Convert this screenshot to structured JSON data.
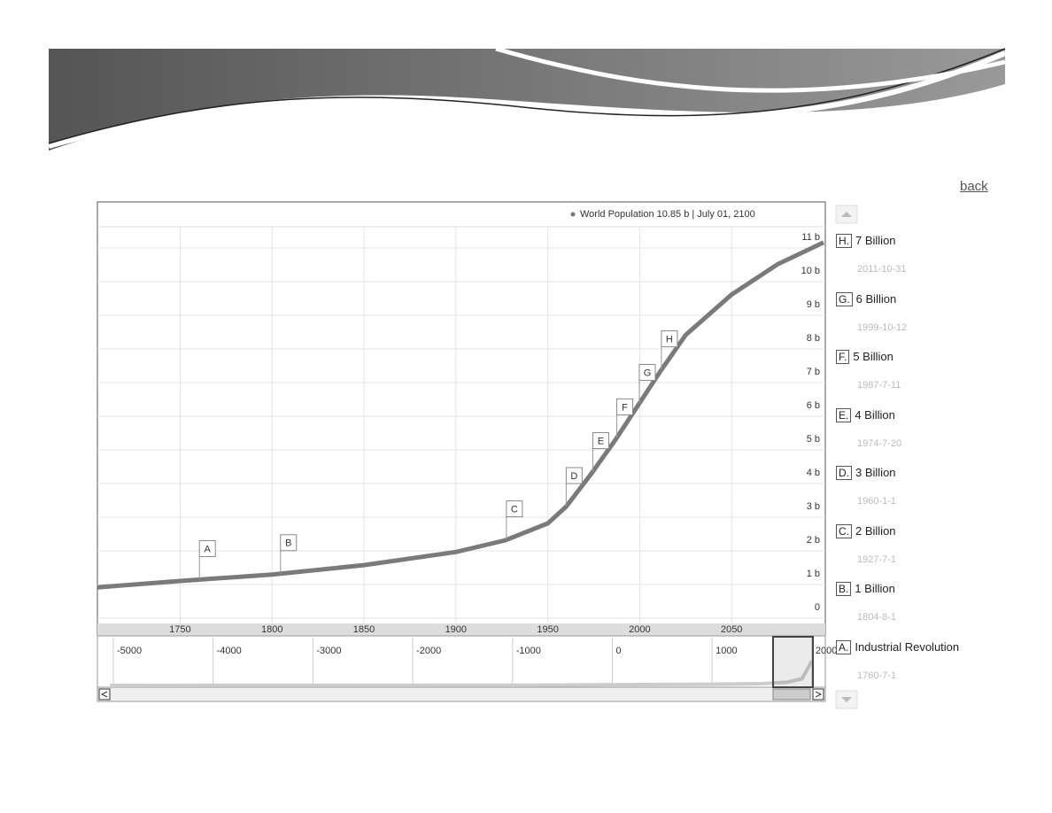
{
  "back_link": "back",
  "chart_data": {
    "type": "line",
    "legend_text": "World Population 10.85 b | July 01, 2100",
    "series": [
      {
        "name": "World Population",
        "color": "#7a7a7a",
        "x": [
          1705,
          1750,
          1800,
          1850,
          1900,
          1927,
          1950,
          1960,
          1974,
          1987,
          1999,
          2011,
          2025,
          2050,
          2075,
          2100
        ],
        "values": [
          0.6,
          0.79,
          0.98,
          1.26,
          1.65,
          2.0,
          2.5,
          3.0,
          4.0,
          5.0,
          6.0,
          7.0,
          8.1,
          9.3,
          10.2,
          10.85
        ]
      }
    ],
    "xlim": [
      1705,
      2100
    ],
    "xticks": [
      1750,
      1800,
      1850,
      1900,
      1950,
      2000,
      2050
    ],
    "ylim": [
      0,
      11
    ],
    "yticks": [
      0,
      {
        "value": 1,
        "label": "1 b"
      },
      {
        "value": 2,
        "label": "2 b"
      },
      {
        "value": 3,
        "label": "3 b"
      },
      {
        "value": 4,
        "label": "4 b"
      },
      {
        "value": 5,
        "label": "5 b"
      },
      {
        "value": 6,
        "label": "6 b"
      },
      {
        "value": 7,
        "label": "7 b"
      },
      {
        "value": 8,
        "label": "8 b"
      },
      {
        "value": 9,
        "label": "9 b"
      },
      {
        "value": 10,
        "label": "10 b"
      },
      {
        "value": 11,
        "label": "11 b"
      }
    ],
    "grid": true,
    "annotations": [
      {
        "flag": "H",
        "key": "H.",
        "title": "7 Billion",
        "date": "2011-10-31",
        "x": 2011.8
      },
      {
        "flag": "G",
        "key": "G.",
        "title": "6 Billion",
        "date": "1999-10-12",
        "x": 1999.8
      },
      {
        "flag": "F",
        "key": "F.",
        "title": "5 Billion",
        "date": "1987-7-11",
        "x": 1987.5
      },
      {
        "flag": "E",
        "key": "E.",
        "title": "4 Billion",
        "date": "1974-7-20",
        "x": 1974.5
      },
      {
        "flag": "D",
        "key": "D.",
        "title": "3 Billion",
        "date": "1960-1-1",
        "x": 1960
      },
      {
        "flag": "C",
        "key": "C.",
        "title": "2 Billion",
        "date": "1927-7-1",
        "x": 1927.5
      },
      {
        "flag": "B",
        "key": "B.",
        "title": "1 Billion",
        "date": "1804-8-1",
        "x": 1804.6
      },
      {
        "flag": "A",
        "key": "A.",
        "title": "Industrial Revolution",
        "date": "1760-7-1",
        "x": 1760.5
      }
    ],
    "navigator": {
      "xlim": [
        -5035,
        2010
      ],
      "xticks": [
        -5000,
        -4000,
        -3000,
        -2000,
        -1000,
        0,
        1000,
        2000
      ],
      "x": [
        -5035,
        -1000,
        0,
        1000,
        1500,
        1750,
        1900,
        2000
      ],
      "values": [
        0.005,
        0.05,
        0.19,
        0.3,
        0.45,
        0.79,
        1.65,
        6.1
      ]
    }
  }
}
